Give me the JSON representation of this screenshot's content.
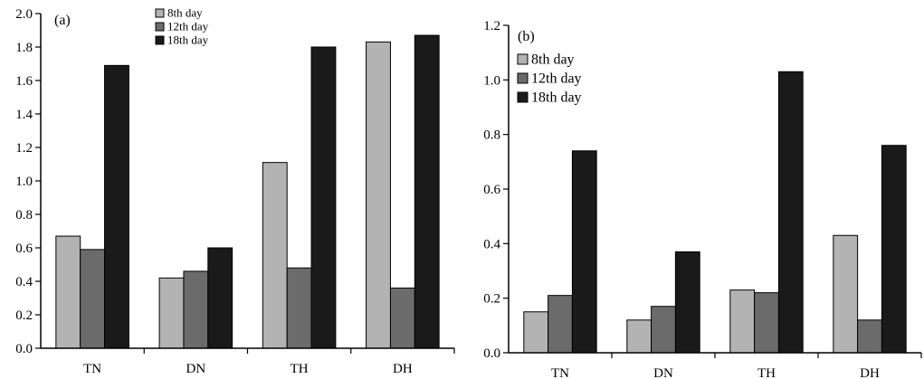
{
  "chart_data": [
    {
      "type": "bar",
      "panel_label": "(a)",
      "categories": [
        "TN",
        "DN",
        "TH",
        "DH"
      ],
      "ylim": [
        0,
        2.0
      ],
      "yticks": [
        "0.0",
        "0.2",
        "0.4",
        "0.6",
        "0.8",
        "1.0",
        "1.2",
        "1.4",
        "1.6",
        "1.8",
        "2.0"
      ],
      "series": [
        {
          "name": "8th day",
          "color": "#b3b3b3",
          "values": [
            0.67,
            0.42,
            1.11,
            1.83
          ]
        },
        {
          "name": "12th day",
          "color": "#6b6b6b",
          "values": [
            0.59,
            0.46,
            0.48,
            0.36
          ]
        },
        {
          "name": "18th day",
          "color": "#1a1a1a",
          "values": [
            1.69,
            0.6,
            1.8,
            1.87
          ]
        }
      ],
      "legend_position": "top-center",
      "grid": false
    },
    {
      "type": "bar",
      "panel_label": "(b)",
      "categories": [
        "TN",
        "DN",
        "TH",
        "DH"
      ],
      "ylim": [
        0,
        1.2
      ],
      "yticks": [
        "0.0",
        "0.2",
        "0.4",
        "0.6",
        "0.8",
        "1.0",
        "1.2"
      ],
      "series": [
        {
          "name": "8th day",
          "color": "#b3b3b3",
          "values": [
            0.15,
            0.12,
            0.23,
            0.43
          ]
        },
        {
          "name": "12th day",
          "color": "#6b6b6b",
          "values": [
            0.21,
            0.17,
            0.22,
            0.12
          ]
        },
        {
          "name": "18th day",
          "color": "#1a1a1a",
          "values": [
            0.74,
            0.37,
            1.03,
            0.76
          ]
        }
      ],
      "legend_position": "top-left",
      "grid": false
    }
  ]
}
